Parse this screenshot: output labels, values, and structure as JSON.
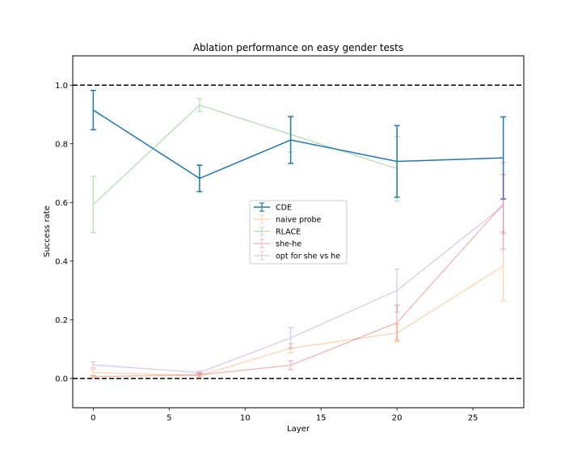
{
  "chart_data": {
    "type": "line",
    "title": "Ablation performance on easy gender tests",
    "xlabel": "Layer",
    "ylabel": "Success rate",
    "xlim": [
      -1.35,
      28.35
    ],
    "ylim": [
      -0.1,
      1.1
    ],
    "xticks": [
      0,
      5,
      10,
      15,
      20,
      25
    ],
    "yticks": [
      0.0,
      0.2,
      0.4,
      0.6,
      0.8,
      1.0
    ],
    "xtick_labels": [
      "0",
      "5",
      "10",
      "15",
      "20",
      "25"
    ],
    "ytick_labels": [
      "0.0",
      "0.2",
      "0.4",
      "0.6",
      "0.8",
      "1.0"
    ],
    "reference_lines": [
      0.0,
      1.0
    ],
    "grid": false,
    "legend_placement": "center",
    "series": [
      {
        "name": "CDE",
        "color": "#1f77b4",
        "opacity": 1.0,
        "x": [
          0,
          7,
          13,
          20,
          27
        ],
        "y": [
          0.915,
          0.682,
          0.813,
          0.74,
          0.752
        ],
        "err": [
          0.067,
          0.045,
          0.08,
          0.122,
          0.14
        ]
      },
      {
        "name": "naive probe",
        "color": "#ff7f0e",
        "opacity": 0.3,
        "x": [
          0,
          7,
          13,
          20,
          27
        ],
        "y": [
          0.02,
          0.01,
          0.103,
          0.155,
          0.383
        ],
        "err": [
          0.01,
          0.008,
          0.015,
          0.03,
          0.118
        ]
      },
      {
        "name": "RLACE",
        "color": "#2ca02c",
        "opacity": 0.3,
        "x": [
          0,
          7,
          13,
          20
        ],
        "y": [
          0.593,
          0.932,
          0.832,
          0.715
        ],
        "err": [
          0.096,
          0.022,
          0.06,
          0.11
        ]
      },
      {
        "name": "she-he",
        "color": "#d62728",
        "opacity": 0.3,
        "x": [
          0,
          7,
          13,
          20,
          27
        ],
        "y": [
          0.006,
          0.012,
          0.045,
          0.19,
          0.595
        ],
        "err": [
          0.003,
          0.006,
          0.015,
          0.06,
          0.1
        ]
      },
      {
        "name": "opt for she vs he",
        "color": "#9467bd",
        "opacity": 0.3,
        "x": [
          0,
          7,
          13,
          20,
          27
        ],
        "y": [
          0.046,
          0.02,
          0.138,
          0.3,
          0.588
        ],
        "err": [
          0.01,
          0.005,
          0.035,
          0.073,
          0.148
        ]
      }
    ]
  }
}
